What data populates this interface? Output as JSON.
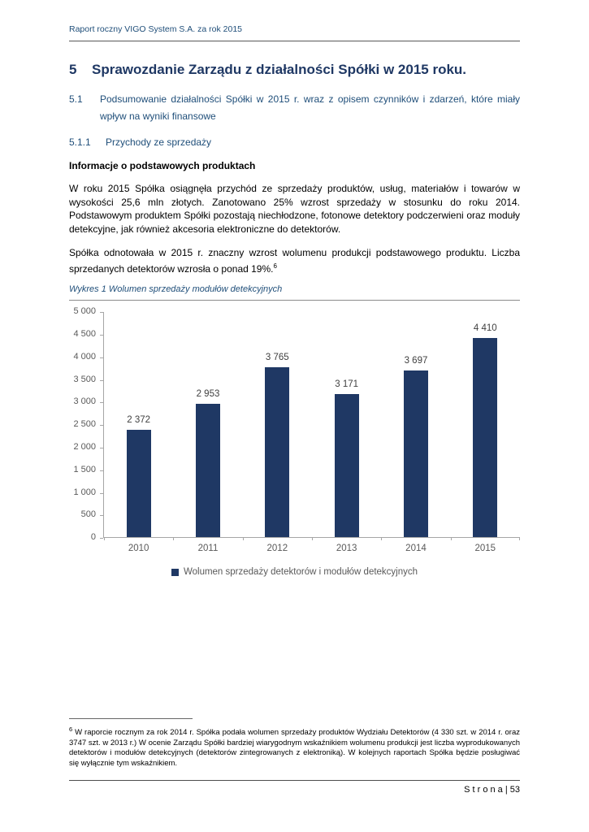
{
  "header": {
    "text": "Raport roczny VIGO System S.A. za rok 2015"
  },
  "headings": {
    "h1_number": "5",
    "h1_title": "Sprawozdanie Zarządu z działalności Spółki w 2015 roku.",
    "h2_number": "5.1",
    "h2_title": "Podsumowanie działalności Spółki w 2015 r. wraz z opisem czynników i zdarzeń, które miały wpływ na wyniki finansowe",
    "h3_number": "5.1.1",
    "h3_title": "Przychody ze sprzedaży",
    "bold_subheading": "Informacje o podstawowych produktach"
  },
  "paragraphs": {
    "para1": "W roku 2015 Spółka osiągnęła przychód ze sprzedaży produktów, usług, materiałów i towarów w wysokości 25,6 mln złotych. Zanotowano 25% wzrost sprzedaży w stosunku do roku 2014. Podstawowym produktem Spółki pozostają niechłodzone, fotonowe detektory podczerwieni oraz moduły detekcyjne, jak również akcesoria elektroniczne do detektorów.",
    "para2": "Spółka odnotowała w 2015 r. znaczny wzrost wolumenu produkcji podstawowego produktu. Liczba sprzedanych detektorów wzrosła o ponad 19%.",
    "para2_footnote_ref": "6"
  },
  "chart_data": {
    "type": "bar",
    "title": "Wykres 1 Wolumen sprzedaży modułów detekcyjnych",
    "categories": [
      "2010",
      "2011",
      "2012",
      "2013",
      "2014",
      "2015"
    ],
    "values": [
      2372,
      2953,
      3765,
      3171,
      3697,
      4410
    ],
    "value_labels": [
      "2 372",
      "2 953",
      "3 765",
      "3 171",
      "3 697",
      "4 410"
    ],
    "ylim": [
      0,
      5000
    ],
    "ytick_values": [
      0,
      500,
      1000,
      1500,
      2000,
      2500,
      3000,
      3500,
      4000,
      4500,
      5000
    ],
    "ytick_labels": [
      "0",
      "500",
      "1 000",
      "1 500",
      "2 000",
      "2 500",
      "3 000",
      "3 500",
      "4 000",
      "4 500",
      "5 000"
    ],
    "legend": [
      "Wolumen sprzedaży detektorów i modułów detekcyjnych"
    ],
    "legend_position": "bottom",
    "grid": false,
    "bar_color": "#1F3864"
  },
  "footnote": {
    "marker": "6",
    "text": "W raporcie rocznym za rok 2014 r. Spółka podała wolumen sprzedaży produktów Wydziału Detektorów (4 330 szt. w 2014 r. oraz 3747 szt. w 2013 r.) W ocenie Zarządu Spółki bardziej wiarygodnym wskaźnikiem wolumenu produkcji jest liczba wyprodukowanych detektorów i modułów detekcyjnych (detektorów zintegrowanych z elektroniką). W kolejnych raportach Spółka będzie posługiwać się wyłącznie tym wskaźnikiem."
  },
  "footer": {
    "text": "S t r o n a | 53"
  }
}
